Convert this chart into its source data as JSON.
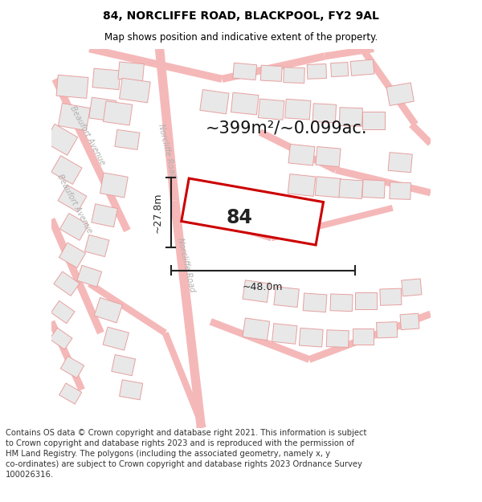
{
  "title": "84, NORCLIFFE ROAD, BLACKPOOL, FY2 9AL",
  "subtitle": "Map shows position and indicative extent of the property.",
  "area_label": "~399m²/~0.099ac.",
  "property_number": "84",
  "width_label": "~48.0m",
  "height_label": "~27.8m",
  "footer_lines": [
    "Contains OS data © Crown copyright and database right 2021. This information is subject",
    "to Crown copyright and database rights 2023 and is reproduced with the permission of",
    "HM Land Registry. The polygons (including the associated geometry, namely x, y",
    "co-ordinates) are subject to Crown copyright and database rights 2023 Ordnance Survey",
    "100026316."
  ],
  "bg_color": "#ffffff",
  "road_color": "#f5b8b8",
  "building_fill": "#e8e8e8",
  "building_stroke": "#e8a0a0",
  "highlight_color": "#cc0000",
  "road_label_color": "#b0b0b0",
  "dim_color": "#222222",
  "title_fontsize": 10,
  "subtitle_fontsize": 8.5,
  "footer_fontsize": 7.2,
  "area_fontsize": 15,
  "number_fontsize": 17,
  "dim_fontsize": 9,
  "road_label_fontsize": 7
}
